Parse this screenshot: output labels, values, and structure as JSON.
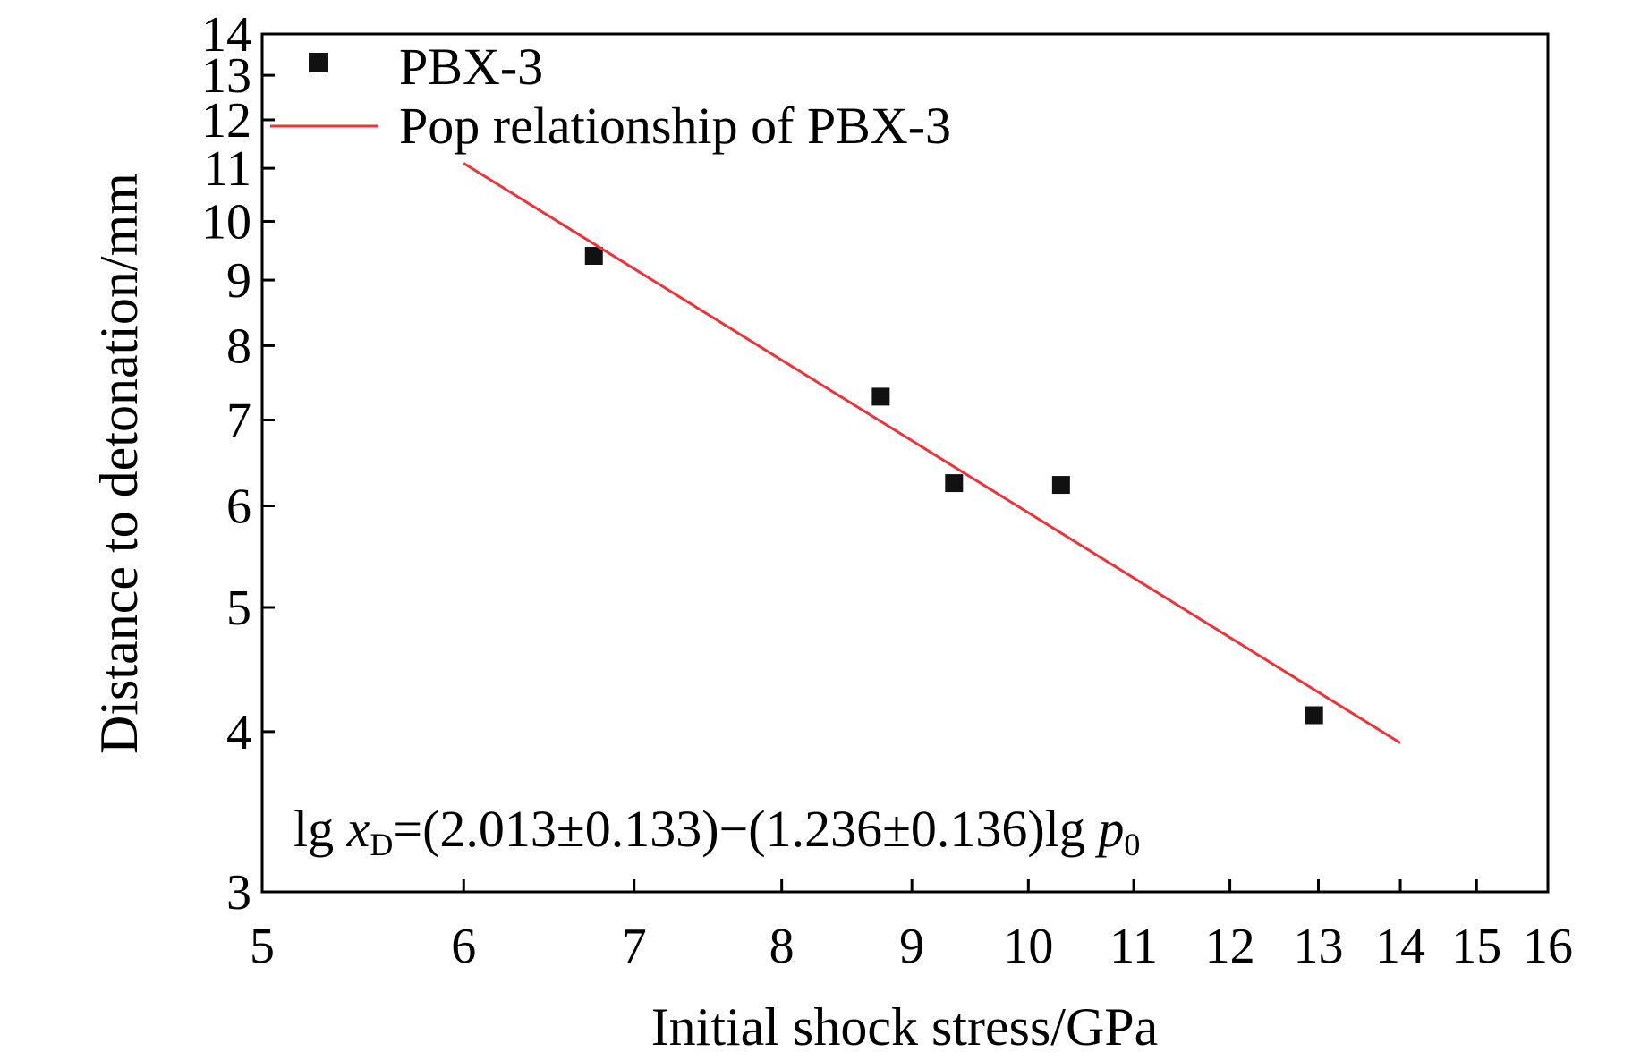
{
  "chart_data": {
    "type": "scatter",
    "title": "",
    "xlabel": "Initial shock stress/GPa",
    "ylabel": "Distance to detonation/mm",
    "xscale": "log",
    "yscale": "log",
    "xlim": [
      5,
      16
    ],
    "ylim": [
      3,
      14
    ],
    "xticks": [
      5,
      6,
      7,
      8,
      9,
      10,
      11,
      12,
      13,
      14,
      15,
      16
    ],
    "yticks": [
      3,
      4,
      5,
      6,
      7,
      8,
      9,
      10,
      11,
      12,
      13,
      14
    ],
    "series": [
      {
        "name": "PBX-3",
        "kind": "scatter",
        "marker": "square",
        "color": "#111111",
        "x": [
          6.75,
          8.75,
          9.35,
          10.3,
          12.95
        ],
        "y": [
          9.4,
          7.3,
          6.25,
          6.23,
          4.12
        ]
      },
      {
        "name": "Pop relationship of PBX-3",
        "kind": "line",
        "color": "#e8343a",
        "x": [
          6.0,
          14.0
        ],
        "y": [
          11.1,
          3.92
        ]
      }
    ],
    "annotation": {
      "prefix": "lg ",
      "var": "x",
      "var_sub": "D",
      "mid": "=(2.013±0.133)−(1.236±0.136)lg ",
      "var2": "p",
      "var2_sub": "0"
    },
    "legend_position": "top-left"
  }
}
